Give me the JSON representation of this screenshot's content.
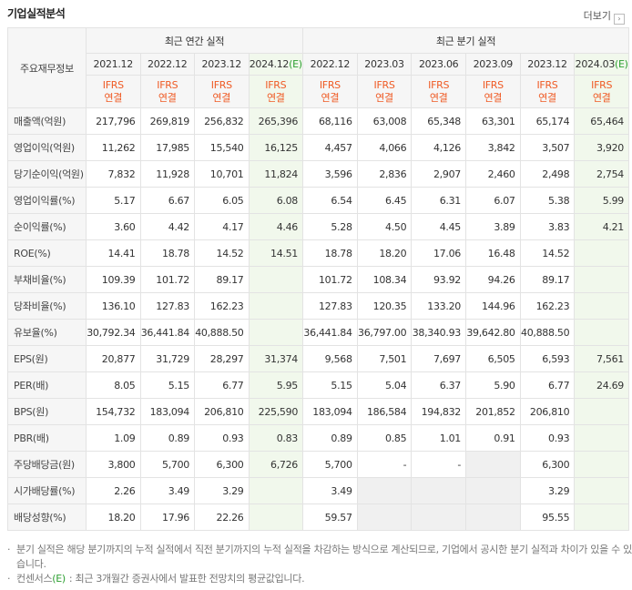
{
  "header": {
    "title": "기업실적분석",
    "more": "더보기"
  },
  "table": {
    "row_header": "주요재무정보",
    "groups": [
      {
        "label": "최근 연간 실적",
        "columns": [
          {
            "date": "2021.12",
            "standard": "IFRS",
            "basis": "연결"
          },
          {
            "date": "2022.12",
            "standard": "IFRS",
            "basis": "연결"
          },
          {
            "date": "2023.12",
            "standard": "IFRS",
            "basis": "연결"
          },
          {
            "date": "2024.12",
            "estimate": "(E)",
            "standard": "IFRS",
            "basis": "연결"
          }
        ]
      },
      {
        "label": "최근 분기 실적",
        "columns": [
          {
            "date": "2022.12",
            "standard": "IFRS",
            "basis": "연결"
          },
          {
            "date": "2023.03",
            "standard": "IFRS",
            "basis": "연결"
          },
          {
            "date": "2023.06",
            "standard": "IFRS",
            "basis": "연결"
          },
          {
            "date": "2023.09",
            "standard": "IFRS",
            "basis": "연결"
          },
          {
            "date": "2023.12",
            "standard": "IFRS",
            "basis": "연결"
          },
          {
            "date": "2024.03",
            "estimate": "(E)",
            "standard": "IFRS",
            "basis": "연결"
          }
        ]
      }
    ],
    "rows": [
      {
        "label": "매출액(억원)",
        "values": [
          "217,796",
          "269,819",
          "256,832",
          "265,396",
          "68,116",
          "63,008",
          "65,348",
          "63,301",
          "65,174",
          "65,464"
        ]
      },
      {
        "label": "영업이익(억원)",
        "values": [
          "11,262",
          "17,985",
          "15,540",
          "16,125",
          "4,457",
          "4,066",
          "4,126",
          "3,842",
          "3,507",
          "3,920"
        ]
      },
      {
        "label": "당기순이익(억원)",
        "values": [
          "7,832",
          "11,928",
          "10,701",
          "11,824",
          "3,596",
          "2,836",
          "2,907",
          "2,460",
          "2,498",
          "2,754"
        ]
      },
      {
        "label": "영업이익률(%)",
        "values": [
          "5.17",
          "6.67",
          "6.05",
          "6.08",
          "6.54",
          "6.45",
          "6.31",
          "6.07",
          "5.38",
          "5.99"
        ]
      },
      {
        "label": "순이익률(%)",
        "values": [
          "3.60",
          "4.42",
          "4.17",
          "4.46",
          "5.28",
          "4.50",
          "4.45",
          "3.89",
          "3.83",
          "4.21"
        ]
      },
      {
        "label": "ROE(%)",
        "values": [
          "14.41",
          "18.78",
          "14.52",
          "14.51",
          "18.78",
          "18.20",
          "17.06",
          "16.48",
          "14.52",
          null
        ]
      },
      {
        "label": "부채비율(%)",
        "values": [
          "109.39",
          "101.72",
          "89.17",
          null,
          "101.72",
          "108.34",
          "93.92",
          "94.26",
          "89.17",
          null
        ]
      },
      {
        "label": "당좌비율(%)",
        "values": [
          "136.10",
          "127.83",
          "162.23",
          null,
          "127.83",
          "120.35",
          "133.20",
          "144.96",
          "162.23",
          null
        ]
      },
      {
        "label": "유보율(%)",
        "values": [
          "30,792.34",
          "36,441.84",
          "40,888.50",
          null,
          "36,441.84",
          "36,797.00",
          "38,340.93",
          "39,642.80",
          "40,888.50",
          null
        ]
      },
      {
        "label": "EPS(원)",
        "values": [
          "20,877",
          "31,729",
          "28,297",
          "31,374",
          "9,568",
          "7,501",
          "7,697",
          "6,505",
          "6,593",
          "7,561"
        ]
      },
      {
        "label": "PER(배)",
        "values": [
          "8.05",
          "5.15",
          "6.77",
          "5.95",
          "5.15",
          "5.04",
          "6.37",
          "5.90",
          "6.77",
          "24.69"
        ]
      },
      {
        "label": "BPS(원)",
        "values": [
          "154,732",
          "183,094",
          "206,810",
          "225,590",
          "183,094",
          "186,584",
          "194,832",
          "201,852",
          "206,810",
          null
        ]
      },
      {
        "label": "PBR(배)",
        "values": [
          "1.09",
          "0.89",
          "0.93",
          "0.83",
          "0.89",
          "0.85",
          "1.01",
          "0.91",
          "0.93",
          null
        ]
      },
      {
        "label": "주당배당금(원)",
        "values": [
          "3,800",
          "5,700",
          "6,300",
          "6,726",
          "5,700",
          "-",
          "-",
          null,
          "6,300",
          null
        ]
      },
      {
        "label": "시가배당률(%)",
        "values": [
          "2.26",
          "3.49",
          "3.29",
          null,
          "3.49",
          null,
          null,
          null,
          "3.29",
          null
        ]
      },
      {
        "label": "배당성향(%)",
        "values": [
          "18.20",
          "17.96",
          "22.26",
          null,
          "59.57",
          null,
          null,
          null,
          "95.55",
          null
        ]
      }
    ]
  },
  "notes": [
    {
      "text": "분기 실적은 해당 분기까지의 누적 실적에서 직전 분기까지의 누적 실적을 차감하는 방식으로 계산되므로, 기업에서 공시한 분기 실적과 차이가 있을 수 있습니다."
    },
    {
      "prefix": "컨센서스",
      "mark": "(E)",
      "text": ": 최근 3개월간 증권사에서 발표한 전망치의 평균값입니다."
    }
  ]
}
